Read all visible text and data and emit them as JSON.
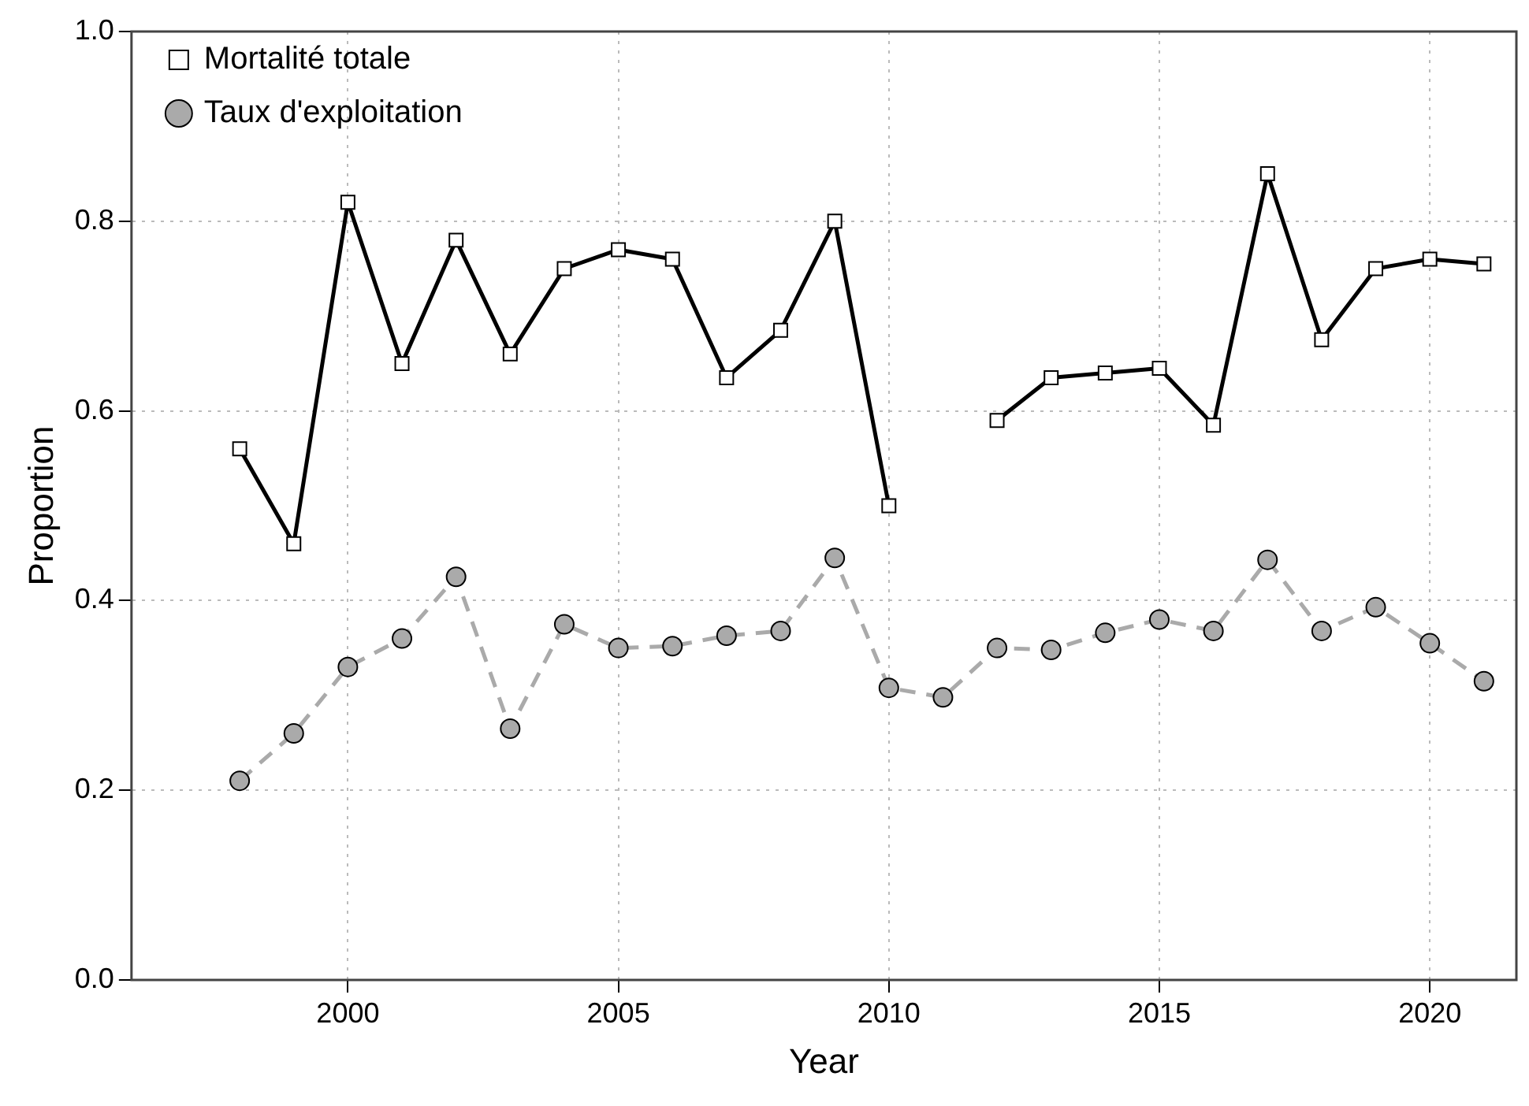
{
  "chart_data": {
    "type": "line",
    "xlabel": "Year",
    "ylabel": "Proportion",
    "x": [
      1998,
      1999,
      2000,
      2001,
      2002,
      2003,
      2004,
      2005,
      2006,
      2007,
      2008,
      2009,
      2010,
      2011,
      2012,
      2013,
      2014,
      2015,
      2016,
      2017,
      2018,
      2019,
      2020,
      2021
    ],
    "series": [
      {
        "name": "Mortalité totale",
        "color": "#000000",
        "marker": "square",
        "line_style": "solid",
        "values": [
          0.56,
          0.46,
          0.82,
          0.65,
          0.78,
          0.66,
          0.75,
          0.77,
          0.76,
          0.635,
          0.685,
          0.8,
          0.5,
          null,
          0.59,
          0.635,
          0.64,
          0.645,
          0.585,
          0.85,
          0.675,
          0.75,
          0.76,
          0.755
        ]
      },
      {
        "name": "Taux d'exploitation",
        "color": "#aaaaaa",
        "marker": "circle",
        "line_style": "dashed",
        "values": [
          0.21,
          0.26,
          0.33,
          0.36,
          0.425,
          0.265,
          0.375,
          0.35,
          0.352,
          0.363,
          0.368,
          0.445,
          0.308,
          0.298,
          0.35,
          0.348,
          0.366,
          0.38,
          0.368,
          0.443,
          0.368,
          0.393,
          0.355,
          0.315
        ]
      }
    ],
    "xlim": [
      1996,
      2021.6
    ],
    "xticks": [
      2000,
      2005,
      2010,
      2015,
      2020
    ],
    "ylim": [
      0,
      1
    ],
    "yticks": [
      {
        "value": 0,
        "label": "0.0"
      },
      0.2,
      0.4,
      0.6,
      0.8,
      {
        "value": 1,
        "label": "1.0"
      }
    ],
    "grid": true,
    "legend": "top left"
  }
}
